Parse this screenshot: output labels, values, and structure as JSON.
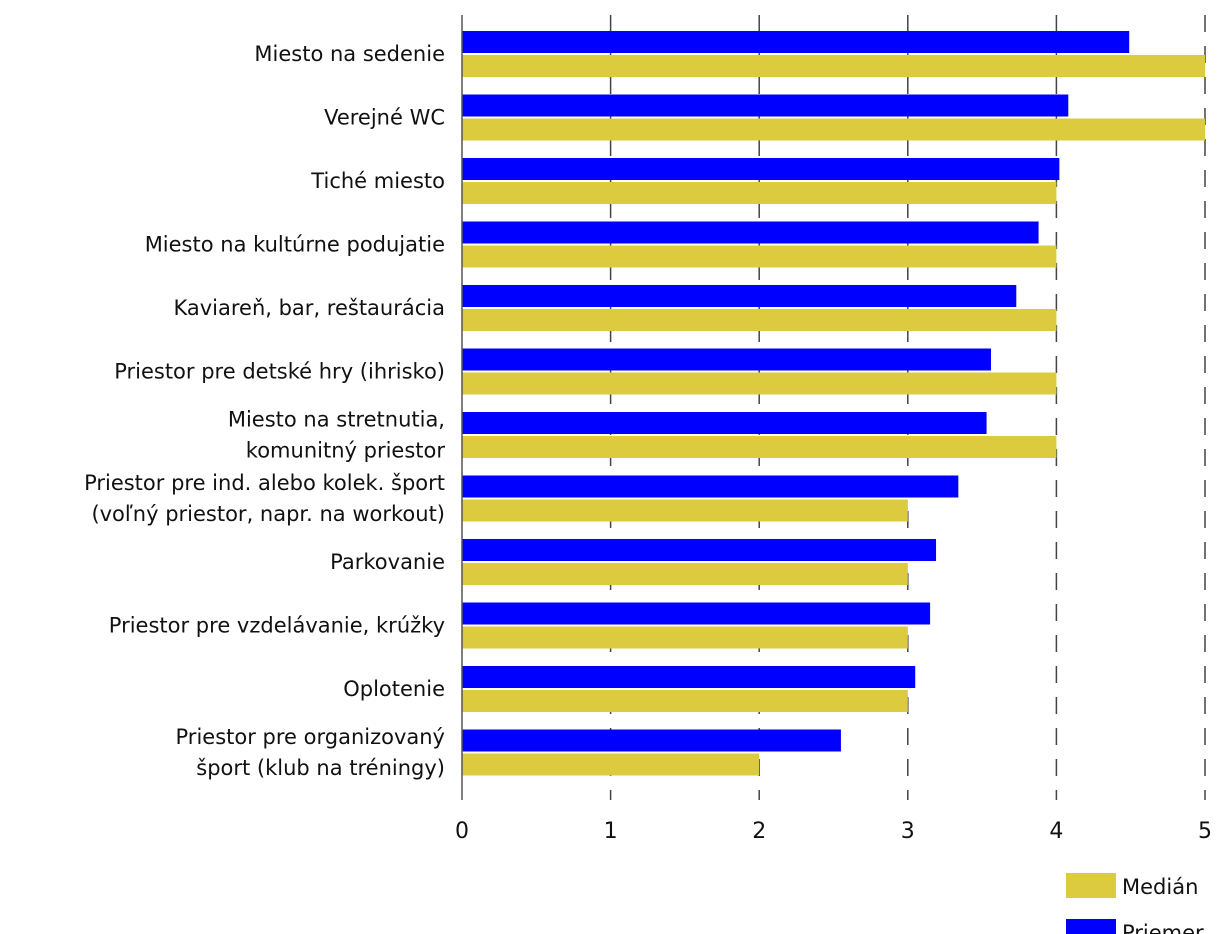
{
  "chart_data": {
    "type": "bar",
    "orientation": "horizontal",
    "title": "",
    "xlabel": "",
    "ylabel": "",
    "xlim": [
      0,
      5
    ],
    "ticks": [
      "0",
      "1",
      "2",
      "3",
      "4",
      "5"
    ],
    "grid": "vertical dashed",
    "legend_position": "bottom-right",
    "categories": [
      [
        "Miesto na sedenie"
      ],
      [
        "Verejné WC"
      ],
      [
        "Tiché miesto"
      ],
      [
        "Miesto na kultúrne podujatie"
      ],
      [
        "Kaviareň, bar, reštaurácia"
      ],
      [
        "Priestor pre detské hry (ihrisko)"
      ],
      [
        "Miesto na stretnutia,",
        "komunitný priestor"
      ],
      [
        "Priestor pre ind. alebo kolek. šport",
        "(voľný priestor, napr. na workout)"
      ],
      [
        "Parkovanie"
      ],
      [
        "Priestor pre vzdelávanie, krúžky"
      ],
      [
        "Oplotenie"
      ],
      [
        "Priestor pre organizovaný",
        "šport (klub na tréningy)"
      ]
    ],
    "series": [
      {
        "name": "Priemer",
        "color": "#0000ff",
        "values": [
          4.49,
          4.08,
          4.02,
          3.88,
          3.73,
          3.56,
          3.53,
          3.34,
          3.19,
          3.15,
          3.05,
          2.55
        ]
      },
      {
        "name": "Medián",
        "color": "#dccb3e",
        "values": [
          5,
          5,
          4,
          4,
          4,
          4,
          4,
          3,
          3,
          3,
          3,
          2
        ]
      }
    ],
    "legend": [
      {
        "name": "Medián",
        "color": "#dccb3e"
      },
      {
        "name": "Priemer",
        "color": "#0000ff"
      }
    ]
  }
}
